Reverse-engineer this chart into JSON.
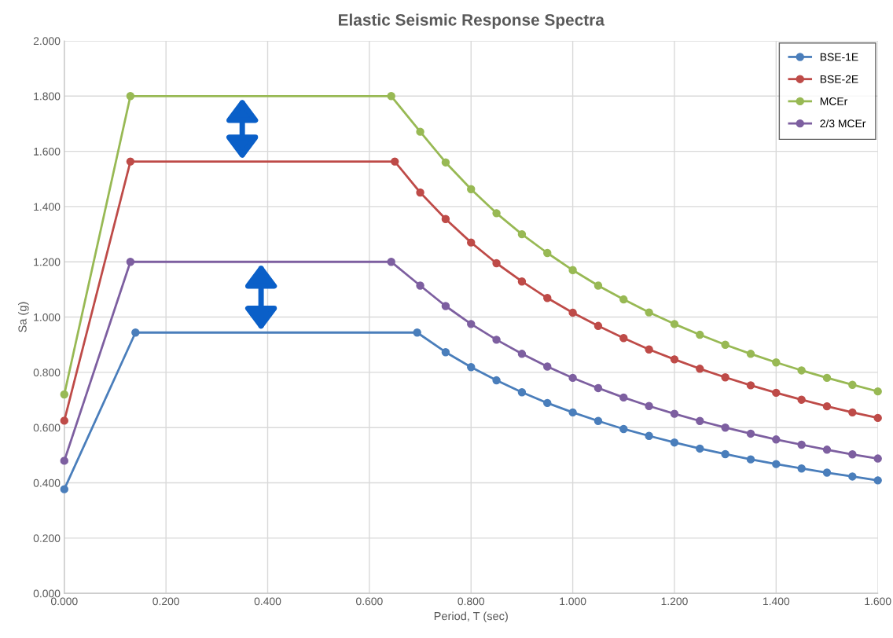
{
  "chart_data": {
    "type": "line",
    "title": "Elastic Seismic Response Spectra",
    "xlabel": "Period, T (sec)",
    "ylabel": "Sa (g)",
    "xlim": [
      0,
      1.6
    ],
    "ylim": [
      0,
      2.0
    ],
    "xticks": [
      {
        "value": 0,
        "label": "0.000"
      },
      {
        "value": 0.2,
        "label": "0.200"
      },
      {
        "value": 0.4,
        "label": "0.400"
      },
      {
        "value": 0.6,
        "label": "0.600"
      },
      {
        "value": 0.8,
        "label": "0.800"
      },
      {
        "value": 1.0,
        "label": "1.000"
      },
      {
        "value": 1.2,
        "label": "1.200"
      },
      {
        "value": 1.4,
        "label": "1.400"
      },
      {
        "value": 1.6,
        "label": "1.600"
      }
    ],
    "yticks": [
      {
        "value": 0,
        "label": "0.000"
      },
      {
        "value": 0.2,
        "label": "0.200"
      },
      {
        "value": 0.4,
        "label": "0.400"
      },
      {
        "value": 0.6,
        "label": "0.600"
      },
      {
        "value": 0.8,
        "label": "0.800"
      },
      {
        "value": 1.0,
        "label": "1.000"
      },
      {
        "value": 1.2,
        "label": "1.200"
      },
      {
        "value": 1.4,
        "label": "1.400"
      },
      {
        "value": 1.6,
        "label": "1.600"
      },
      {
        "value": 1.8,
        "label": "1.800"
      },
      {
        "value": 2.0,
        "label": "2.000"
      }
    ],
    "grid": true,
    "legend": "top right",
    "marker": "circle",
    "line_style": "solid",
    "series": [
      {
        "name": "BSE-1E",
        "color": "#4a7ebb",
        "x": [
          0,
          0.14,
          0.694,
          0.75,
          0.8,
          0.85,
          0.9,
          0.95,
          1.0,
          1.05,
          1.1,
          1.15,
          1.2,
          1.25,
          1.3,
          1.35,
          1.4,
          1.45,
          1.5,
          1.55,
          1.6
        ],
        "values": [
          0.377,
          0.944,
          0.944,
          0.873,
          0.819,
          0.771,
          0.728,
          0.689,
          0.655,
          0.624,
          0.595,
          0.57,
          0.546,
          0.524,
          0.504,
          0.485,
          0.468,
          0.452,
          0.437,
          0.423,
          0.409
        ]
      },
      {
        "name": "BSE-2E",
        "color": "#be4b48",
        "x": [
          0,
          0.13,
          0.65,
          0.7,
          0.75,
          0.8,
          0.85,
          0.9,
          0.95,
          1.0,
          1.05,
          1.1,
          1.15,
          1.2,
          1.25,
          1.3,
          1.35,
          1.4,
          1.45,
          1.5,
          1.55,
          1.6
        ],
        "values": [
          0.625,
          1.563,
          1.563,
          1.451,
          1.355,
          1.27,
          1.195,
          1.129,
          1.069,
          1.016,
          0.968,
          0.924,
          0.883,
          0.847,
          0.813,
          0.782,
          0.753,
          0.726,
          0.701,
          0.677,
          0.655,
          0.635
        ]
      },
      {
        "name": "MCEr",
        "color": "#98b954",
        "x": [
          0,
          0.13,
          0.643,
          0.7,
          0.75,
          0.8,
          0.85,
          0.9,
          0.95,
          1.0,
          1.05,
          1.1,
          1.15,
          1.2,
          1.25,
          1.3,
          1.35,
          1.4,
          1.45,
          1.5,
          1.55,
          1.6
        ],
        "values": [
          0.72,
          1.8,
          1.8,
          1.671,
          1.56,
          1.463,
          1.376,
          1.3,
          1.232,
          1.17,
          1.114,
          1.064,
          1.017,
          0.975,
          0.936,
          0.9,
          0.867,
          0.836,
          0.807,
          0.78,
          0.755,
          0.731
        ]
      },
      {
        "name": "2/3 MCEr",
        "color": "#7d5fa0",
        "x": [
          0,
          0.13,
          0.643,
          0.7,
          0.75,
          0.8,
          0.85,
          0.9,
          0.95,
          1.0,
          1.05,
          1.1,
          1.15,
          1.2,
          1.25,
          1.3,
          1.35,
          1.4,
          1.45,
          1.5,
          1.55,
          1.6
        ],
        "values": [
          0.48,
          1.2,
          1.2,
          1.114,
          1.04,
          0.975,
          0.918,
          0.867,
          0.821,
          0.78,
          0.743,
          0.709,
          0.678,
          0.65,
          0.624,
          0.6,
          0.578,
          0.557,
          0.538,
          0.52,
          0.503,
          0.488
        ]
      }
    ]
  }
}
